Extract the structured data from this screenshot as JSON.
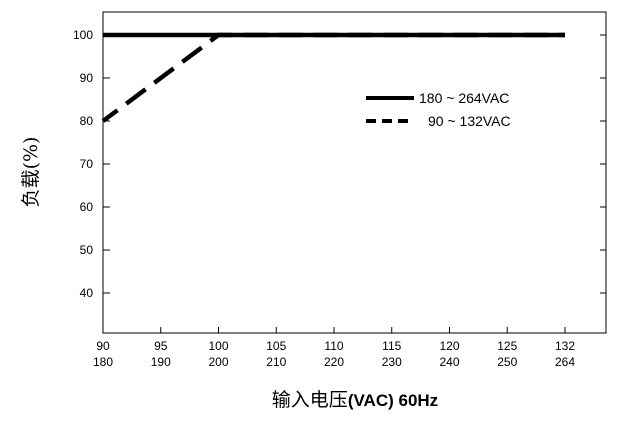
{
  "chart_data": {
    "type": "line",
    "xlabel_cjk": "输入电压",
    "xlabel_unit": "(VAC) 60Hz",
    "ylabel": "负载(%)",
    "ylim": [
      30,
      105
    ],
    "y_ticks": [
      40,
      50,
      60,
      70,
      80,
      90,
      100
    ],
    "x_ticks_top": [
      "90",
      "95",
      "100",
      "105",
      "110",
      "115",
      "120",
      "125",
      "132"
    ],
    "x_ticks_bottom": [
      "180",
      "190",
      "200",
      "210",
      "220",
      "230",
      "240",
      "250",
      "264"
    ],
    "grid": false,
    "legend_position": "right",
    "series": [
      {
        "name": "180 ~ 264VAC",
        "style": "solid",
        "points": [
          {
            "x": 180,
            "y": 100
          },
          {
            "x": 264,
            "y": 100
          }
        ]
      },
      {
        "name": "90 ~ 132VAC",
        "style": "dashed",
        "points": [
          {
            "x": 90,
            "y": 80
          },
          {
            "x": 100,
            "y": 100
          },
          {
            "x": 132,
            "y": 100
          }
        ]
      }
    ]
  }
}
